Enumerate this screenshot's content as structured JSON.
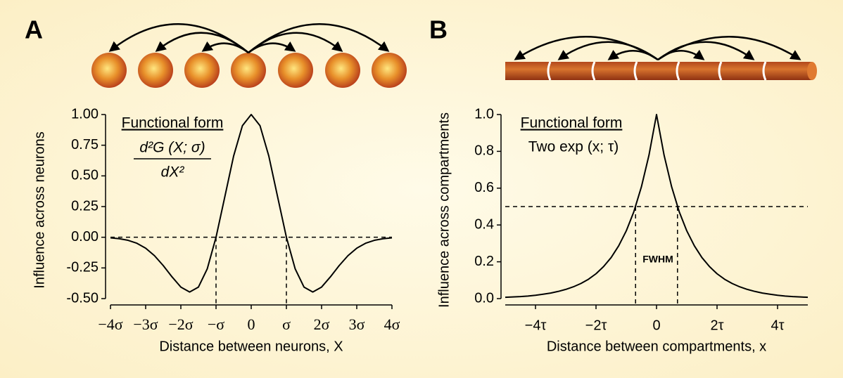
{
  "chart_data": [
    {
      "type": "line",
      "panel_label": "A",
      "xlabel": "Distance between neurons, X",
      "ylabel": "Influence across neurons",
      "annotations": [
        "Functional form",
        "d²G (X; σ)",
        "dX²"
      ],
      "x": [
        -4,
        -3.75,
        -3.5,
        -3.25,
        -3,
        -2.75,
        -2.5,
        -2.25,
        -2,
        -1.75,
        -1.5,
        -1.25,
        -1,
        -0.75,
        -0.5,
        -0.25,
        0,
        0.25,
        0.5,
        0.75,
        1,
        1.25,
        1.5,
        1.75,
        2,
        2.25,
        2.5,
        2.75,
        3,
        3.25,
        3.5,
        3.75,
        4
      ],
      "values": [
        -0.005,
        -0.012,
        -0.025,
        -0.049,
        -0.089,
        -0.15,
        -0.231,
        -0.323,
        -0.406,
        -0.446,
        -0.406,
        -0.258,
        0,
        0.33,
        0.662,
        0.909,
        1,
        0.909,
        0.662,
        0.33,
        0,
        -0.258,
        -0.406,
        -0.446,
        -0.406,
        -0.323,
        -0.231,
        -0.15,
        -0.089,
        -0.049,
        -0.025,
        -0.012,
        -0.005
      ],
      "color": "#000000",
      "hline": 0,
      "vlines": [
        -1,
        1
      ],
      "xlim": [
        -4,
        4
      ],
      "xticks": [
        {
          "value": -4,
          "label": "−4σ"
        },
        {
          "value": -3,
          "label": "−3σ"
        },
        {
          "value": -2,
          "label": "−2σ"
        },
        {
          "value": -1,
          "label": "−σ"
        },
        0,
        {
          "value": 1,
          "label": "σ"
        },
        {
          "value": 2,
          "label": "2σ"
        },
        {
          "value": 3,
          "label": "3σ"
        },
        {
          "value": 4,
          "label": "4σ"
        }
      ],
      "ylim": [
        -0.5,
        1
      ],
      "yticks": [
        {
          "value": -0.5,
          "label": "-0.50"
        },
        {
          "value": -0.25,
          "label": "-0.25"
        },
        {
          "value": 0,
          "label": "0.00"
        },
        {
          "value": 0.25,
          "label": "0.25"
        },
        {
          "value": 0.5,
          "label": "0.50"
        },
        {
          "value": 0.75,
          "label": "0.75"
        },
        {
          "value": 1,
          "label": "1.00"
        }
      ]
    },
    {
      "type": "line",
      "panel_label": "B",
      "xlabel": "Distance between compartments, x",
      "ylabel": "Influence across compartments",
      "annotations": [
        "Functional form",
        "Two exp (x; τ)",
        "FWHM"
      ],
      "x": [
        -5,
        -4.75,
        -4.5,
        -4.25,
        -4,
        -3.75,
        -3.5,
        -3.25,
        -3,
        -2.75,
        -2.5,
        -2.25,
        -2,
        -1.75,
        -1.5,
        -1.25,
        -1,
        -0.75,
        -0.5,
        -0.25,
        0,
        0.25,
        0.5,
        0.75,
        1,
        1.25,
        1.5,
        1.75,
        2,
        2.25,
        2.5,
        2.75,
        3,
        3.25,
        3.5,
        3.75,
        4,
        4.25,
        4.5,
        4.75,
        5
      ],
      "values": [
        0.007,
        0.009,
        0.011,
        0.014,
        0.018,
        0.024,
        0.03,
        0.039,
        0.05,
        0.064,
        0.082,
        0.105,
        0.135,
        0.174,
        0.223,
        0.287,
        0.368,
        0.472,
        0.607,
        0.779,
        1,
        0.779,
        0.607,
        0.472,
        0.368,
        0.287,
        0.223,
        0.174,
        0.135,
        0.105,
        0.082,
        0.064,
        0.05,
        0.039,
        0.03,
        0.024,
        0.018,
        0.014,
        0.011,
        0.009,
        0.007
      ],
      "color": "#000000",
      "hline": 0.5,
      "vlines": [
        -0.693,
        0.693
      ],
      "xlim": [
        -5,
        5
      ],
      "xticks": [
        {
          "value": -4,
          "label": "−4τ"
        },
        {
          "value": -2,
          "label": "−2τ"
        },
        0,
        {
          "value": 2,
          "label": "2τ"
        },
        {
          "value": 4,
          "label": "4τ"
        }
      ],
      "ylim": [
        0,
        1
      ],
      "yticks": [
        {
          "value": 0,
          "label": "0.0"
        },
        0.2,
        0.4,
        0.6,
        0.8,
        {
          "value": 1,
          "label": "1.0"
        }
      ]
    }
  ]
}
